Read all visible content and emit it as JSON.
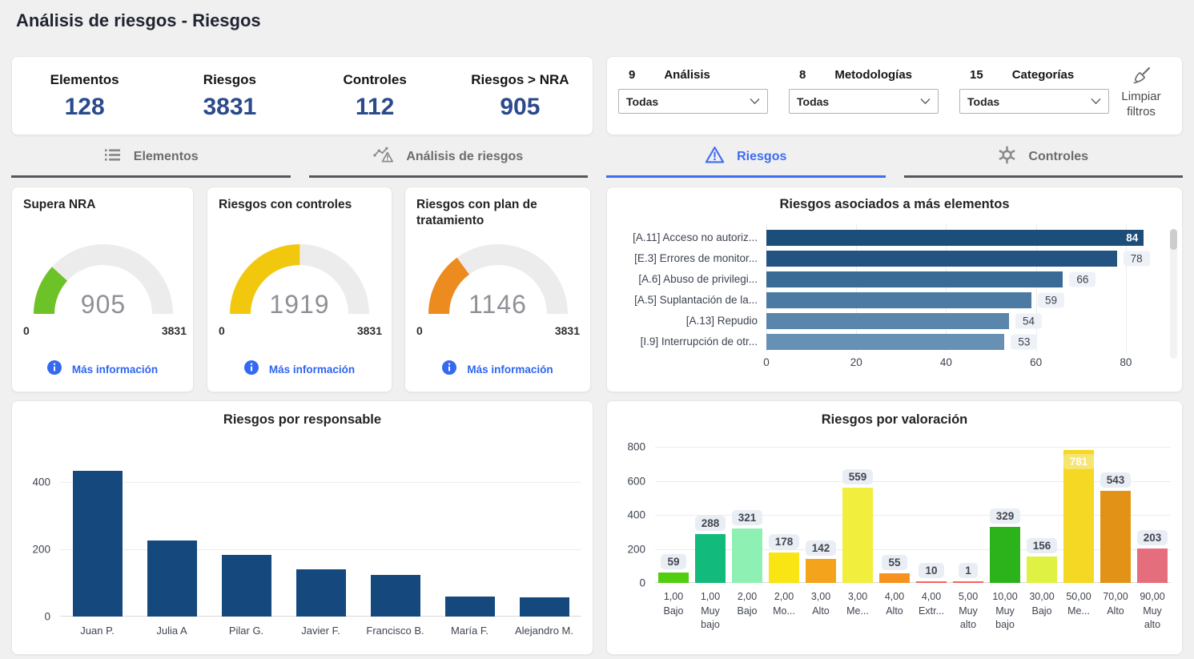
{
  "page": {
    "title": "Análisis de riesgos - Riesgos"
  },
  "kpis": [
    {
      "label": "Elementos",
      "value": "128"
    },
    {
      "label": "Riesgos",
      "value": "3831"
    },
    {
      "label": "Controles",
      "value": "112"
    },
    {
      "label": "Riesgos > NRA",
      "value": "905"
    }
  ],
  "filters": {
    "items": [
      {
        "count": "9",
        "label": "Análisis",
        "value": "Todas"
      },
      {
        "count": "8",
        "label": "Metodologías",
        "value": "Todas"
      },
      {
        "count": "15",
        "label": "Categorías",
        "value": "Todas"
      }
    ],
    "clear_label": "Limpiar filtros"
  },
  "tabs": [
    {
      "label": "Elementos",
      "icon": "list-icon",
      "active": false
    },
    {
      "label": "Análisis de riesgos",
      "icon": "chart-warning-icon",
      "active": false
    },
    {
      "label": "Riesgos",
      "icon": "warning-triangle-icon",
      "active": true
    },
    {
      "label": "Controles",
      "icon": "gear-icon",
      "active": false
    }
  ],
  "colors": {
    "accent_blue": "#3f6bf2",
    "kpi_value": "#2b4a8c",
    "gauge_track": "#ececec",
    "inactive_tab": "#6c6c6c"
  },
  "chart_data": [
    {
      "type": "gauge",
      "title": "Supera NRA",
      "value": 905,
      "min": 0,
      "max": 3831,
      "color": "#6cc226",
      "link": "Más información"
    },
    {
      "type": "gauge",
      "title": "Riesgos con controles",
      "value": 1919,
      "min": 0,
      "max": 3831,
      "color": "#f2c80f",
      "link": "Más información"
    },
    {
      "type": "gauge",
      "title": "Riesgos con plan de tratamiento",
      "value": 1146,
      "min": 0,
      "max": 3831,
      "color": "#ec8b1e",
      "link": "Más información"
    },
    {
      "type": "bar",
      "orientation": "horizontal",
      "title": "Riesgos asociados a más elementos",
      "categories": [
        "[A.11] Acceso no autoriz...",
        "[E.3] Errores de monitor...",
        "[A.6] Abuso de privilegi...",
        "[A.5] Suplantación de la...",
        "[A.13] Repudio",
        "[I.9] Interrupción de otr..."
      ],
      "values": [
        84,
        78,
        66,
        59,
        54,
        53
      ],
      "colors": [
        "#1d4e79",
        "#235481",
        "#3a6a96",
        "#4d7aa3",
        "#5a85ad",
        "#6690b4"
      ],
      "label_inside": [
        0
      ],
      "xlim": [
        0,
        90
      ],
      "xticks": [
        0,
        20,
        40,
        60,
        80
      ],
      "grid": true
    },
    {
      "type": "bar",
      "orientation": "vertical",
      "title": "Riesgos por responsable",
      "categories": [
        "Juan P.",
        "Julia A",
        "Pilar G.",
        "Javier F.",
        "Francisco B.",
        "María F.",
        "Alejandro M."
      ],
      "values": [
        433,
        227,
        184,
        141,
        124,
        60,
        57
      ],
      "color": "#15497e",
      "ylim": [
        0,
        500
      ],
      "yticks": [
        0,
        200,
        400
      ],
      "grid": true,
      "data_labels": false
    },
    {
      "type": "bar",
      "orientation": "vertical",
      "title": "Riesgos por valoración",
      "categories": [
        "1,00 Bajo",
        "1,00 Muy bajo",
        "2,00 Bajo",
        "2,00 Mo...",
        "3,00 Alto",
        "3,00 Me...",
        "4,00 Alto",
        "4,00 Extr...",
        "5,00 Muy alto",
        "10,00 Muy bajo",
        "30,00 Bajo",
        "50,00 Me...",
        "70,00 Alto",
        "90,00 Muy alto"
      ],
      "values": [
        59,
        288,
        321,
        178,
        142,
        559,
        55,
        10,
        1,
        329,
        156,
        781,
        543,
        203
      ],
      "colors": [
        "#52ce11",
        "#12ba7c",
        "#8ff0b4",
        "#f9e513",
        "#f4a41c",
        "#f1ee3d",
        "#f6921d",
        "#f7625c",
        "#f7625c",
        "#2cb31c",
        "#dff243",
        "#f5d824",
        "#e29317",
        "#e56e7d"
      ],
      "label_inside": [
        11
      ],
      "ylim": [
        0,
        800
      ],
      "yticks": [
        0,
        200,
        400,
        600,
        800
      ],
      "grid": true,
      "data_labels": true
    }
  ]
}
